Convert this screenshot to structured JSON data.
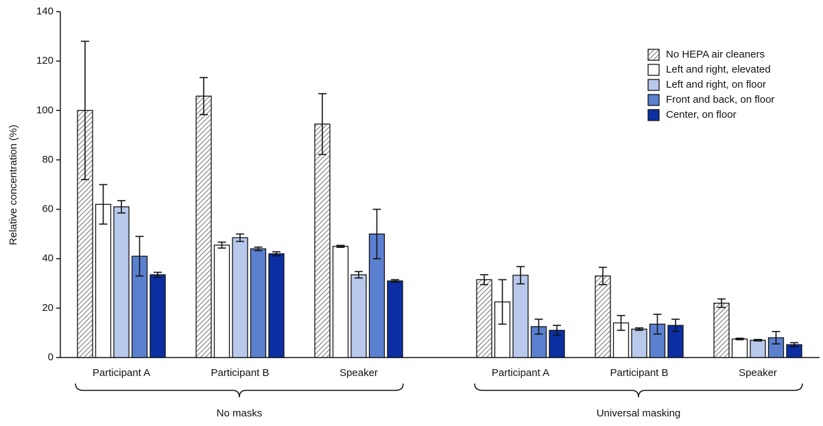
{
  "chart_data": {
    "type": "bar",
    "y_label": "Relative concentration (%)",
    "categories": [
      "Participant A",
      "Participant B",
      "Speaker",
      "Participant A",
      "Participant B",
      "Speaker"
    ],
    "groups": [
      "No masks",
      "Universal masking"
    ],
    "ylim": [
      0,
      140
    ],
    "yticks": [
      0,
      20,
      40,
      60,
      80,
      100,
      120,
      140
    ],
    "legend": "top-right",
    "series": [
      {
        "name": "No HEPA air cleaners",
        "color": "#7a7a7a",
        "pattern": "hatch",
        "values": [
          100,
          105.8,
          94.5,
          31.5,
          33,
          22
        ],
        "errors": [
          28,
          7.5,
          12.3,
          2,
          3.5,
          1.7
        ]
      },
      {
        "name": "Left and right, elevated",
        "color": "#ffffff",
        "values": [
          62,
          45.5,
          45,
          22.5,
          14,
          7.5
        ],
        "errors": [
          8,
          1.2,
          0.4,
          9,
          3,
          0.3
        ]
      },
      {
        "name": "Left and right, on floor",
        "color": "#b9c9ec",
        "values": [
          61,
          48.5,
          33.5,
          33.3,
          11.5,
          7
        ],
        "errors": [
          2.5,
          1.5,
          1.3,
          3.5,
          0.5,
          0.3
        ]
      },
      {
        "name": "Front and back, on floor",
        "color": "#5b80d0",
        "values": [
          41,
          44,
          50,
          12.5,
          13.5,
          8
        ],
        "errors": [
          8,
          0.7,
          10,
          3,
          4,
          2.5
        ]
      },
      {
        "name": "Center, on floor",
        "color": "#0b2fa3",
        "values": [
          33.5,
          42,
          31,
          11,
          13,
          5.2
        ],
        "errors": [
          1,
          0.8,
          0.5,
          2,
          2.5,
          0.8
        ]
      }
    ]
  }
}
